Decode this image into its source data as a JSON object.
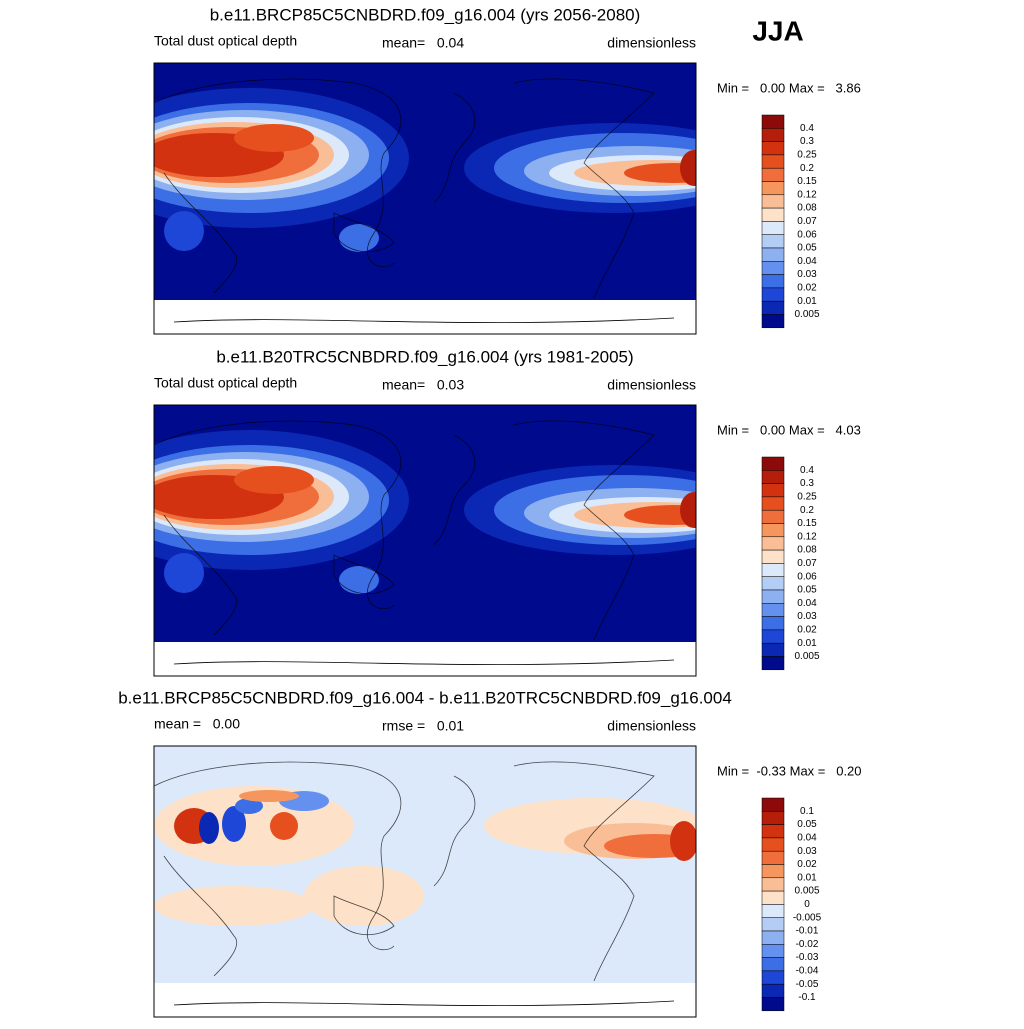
{
  "season": "JJA",
  "panels": [
    {
      "title": "b.e11.BRCP85C5CNBDRD.f09_g16.004 (yrs 2056-2080)",
      "left_label": "Total dust optical depth",
      "center_label": "mean=   0.04",
      "right_label": "dimensionless",
      "min_max": "Min =   0.00 Max =   3.86",
      "colorbar": {
        "labels": [
          "0.4",
          "0.3",
          "0.25",
          "0.2",
          "0.15",
          "0.12",
          "0.08",
          "0.07",
          "0.06",
          "0.05",
          "0.04",
          "0.03",
          "0.02",
          "0.01",
          "0.005"
        ],
        "colors": [
          "#8c0a0a",
          "#b41e0a",
          "#d2320f",
          "#e6501e",
          "#f06e3c",
          "#f5965f",
          "#fabe96",
          "#fde1c8",
          "#dce9fa",
          "#b4cdf5",
          "#8cb0f0",
          "#6490ef",
          "#3c6ee6",
          "#1e46d7",
          "#0a28b4",
          "#000a8c"
        ]
      }
    },
    {
      "title": "b.e11.B20TRC5CNBDRD.f09_g16.004 (yrs 1981-2005)",
      "left_label": "Total dust optical depth",
      "center_label": "mean=   0.03",
      "right_label": "dimensionless",
      "min_max": "Min =   0.00 Max =   4.03",
      "colorbar": {
        "labels": [
          "0.4",
          "0.3",
          "0.25",
          "0.2",
          "0.15",
          "0.12",
          "0.08",
          "0.07",
          "0.06",
          "0.05",
          "0.04",
          "0.03",
          "0.02",
          "0.01",
          "0.005"
        ],
        "colors": [
          "#8c0a0a",
          "#b41e0a",
          "#d2320f",
          "#e6501e",
          "#f06e3c",
          "#f5965f",
          "#fabe96",
          "#fde1c8",
          "#dce9fa",
          "#b4cdf5",
          "#8cb0f0",
          "#6490ef",
          "#3c6ee6",
          "#1e46d7",
          "#0a28b4",
          "#000a8c"
        ]
      }
    },
    {
      "title": "b.e11.BRCP85C5CNBDRD.f09_g16.004 - b.e11.B20TRC5CNBDRD.f09_g16.004",
      "left_label": "mean =   0.00",
      "center_label": "rmse =   0.01",
      "right_label": "dimensionless",
      "min_max": "Min =  -0.33 Max =   0.20",
      "colorbar": {
        "labels": [
          "0.1",
          "0.05",
          "0.04",
          "0.03",
          "0.02",
          "0.01",
          "0.005",
          "0",
          "-0.005",
          "-0.01",
          "-0.02",
          "-0.03",
          "-0.04",
          "-0.05",
          "-0.1"
        ],
        "colors": [
          "#8c0a0a",
          "#b41e0a",
          "#d2320f",
          "#e6501e",
          "#f06e3c",
          "#f5965f",
          "#fabe96",
          "#fde1c8",
          "#dce9fa",
          "#b4cdf5",
          "#8cb0f0",
          "#6490ef",
          "#3c6ee6",
          "#1e46d7",
          "#0a28b4",
          "#000a8c"
        ]
      }
    }
  ]
}
